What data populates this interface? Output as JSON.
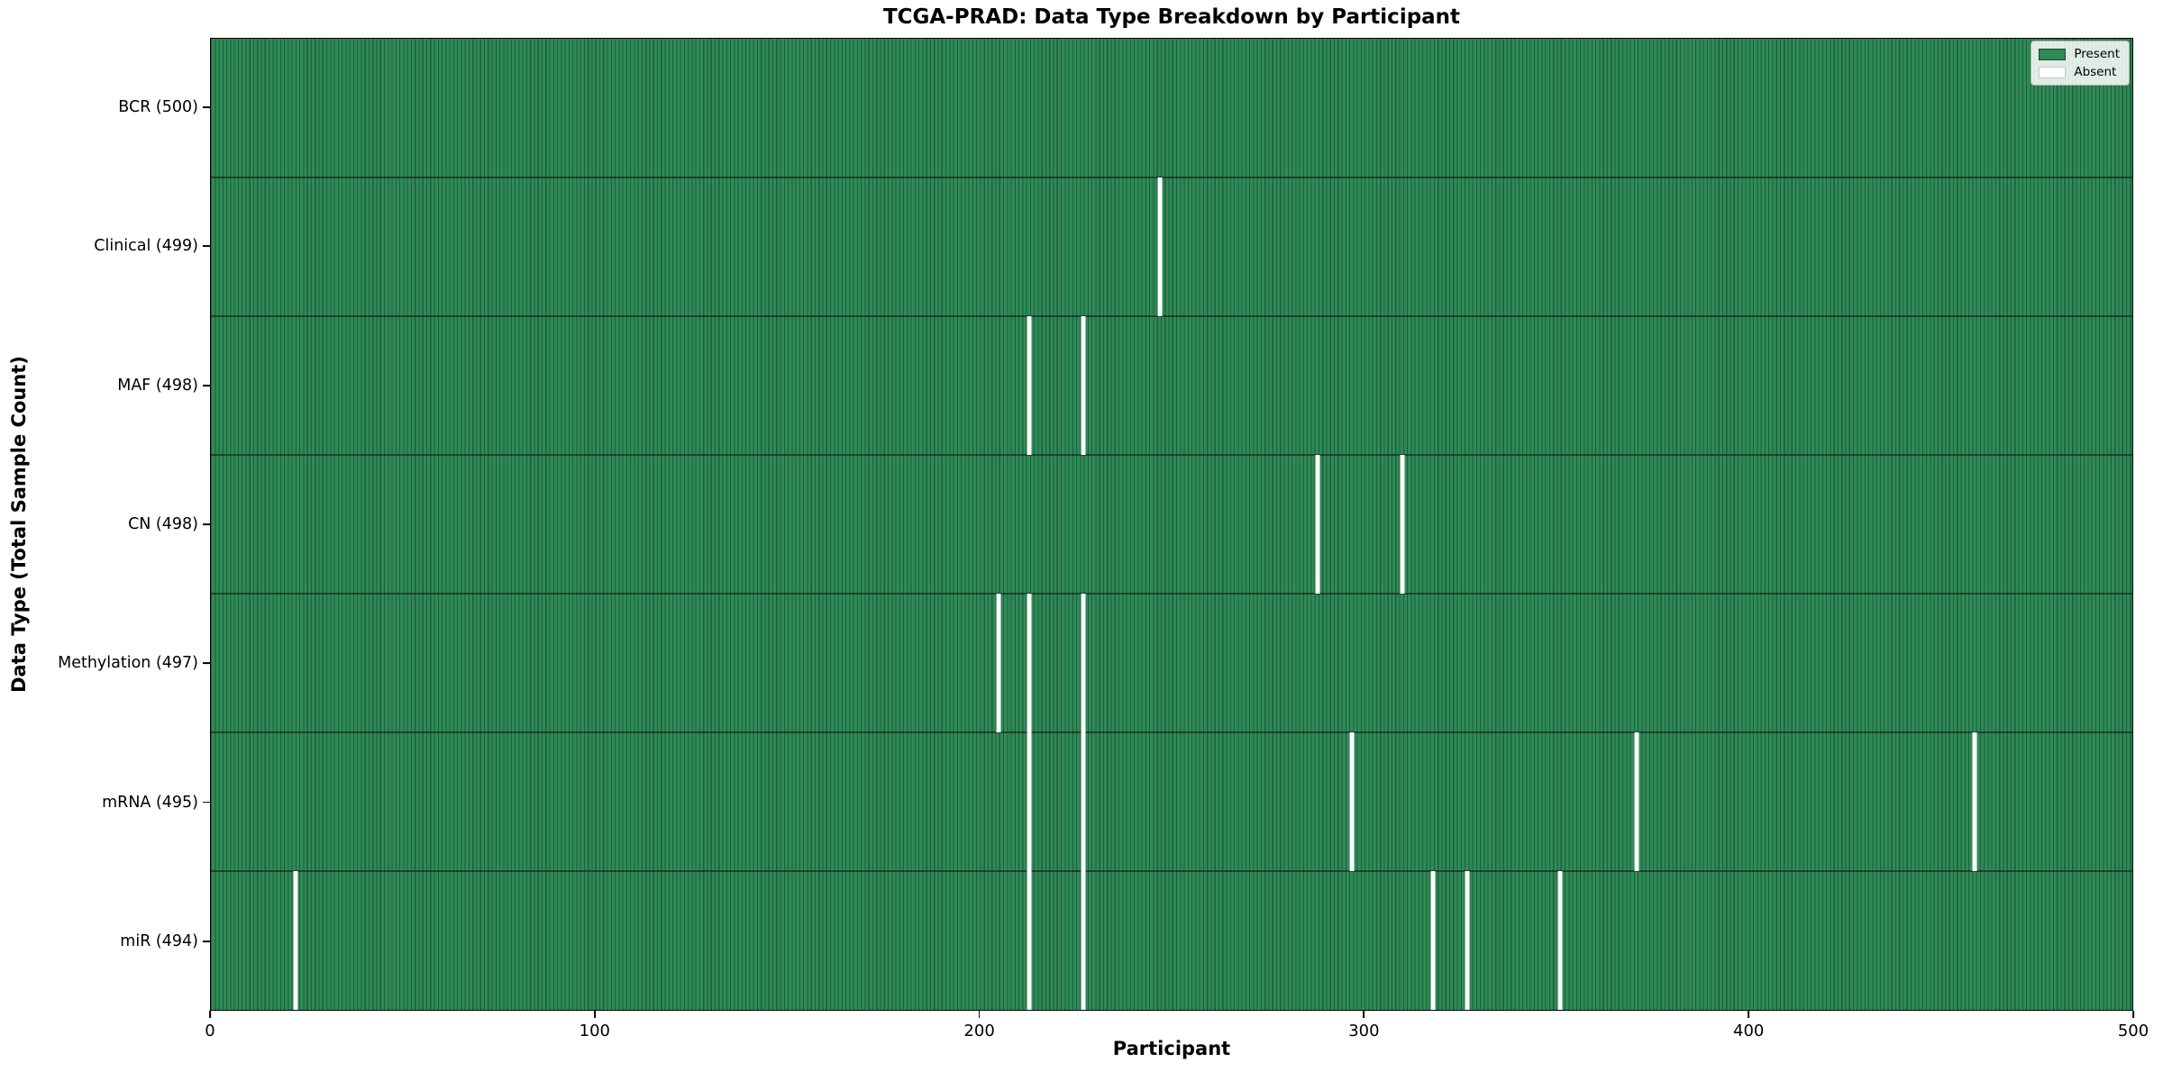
{
  "colors": {
    "present": "#2e8b57",
    "absent": "#ffffff",
    "bar_edge": "#1f5c3b",
    "row_divider": "#1a1a1a"
  },
  "legend": {
    "present_label": "Present",
    "absent_label": "Absent"
  },
  "chart_data": {
    "type": "heatmap",
    "title": "TCGA-PRAD: Data Type Breakdown by Participant",
    "xlabel": "Participant",
    "ylabel": "Data Type (Total Sample Count)",
    "x_range": [
      0,
      500
    ],
    "x_ticks": [
      0,
      100,
      200,
      300,
      400,
      500
    ],
    "n_participants": 500,
    "grid": false,
    "legend_position": "upper right",
    "rows": [
      {
        "label": "BCR (500)",
        "total": 500,
        "absent_participants": []
      },
      {
        "label": "Clinical (499)",
        "total": 499,
        "absent_participants": [
          247
        ]
      },
      {
        "label": "MAF (498)",
        "total": 498,
        "absent_participants": [
          213,
          227
        ]
      },
      {
        "label": "CN (498)",
        "total": 498,
        "absent_participants": [
          288,
          310
        ]
      },
      {
        "label": "Methylation (497)",
        "total": 497,
        "absent_participants": [
          205,
          213,
          227
        ]
      },
      {
        "label": "mRNA (495)",
        "total": 495,
        "absent_participants": [
          213,
          227,
          297,
          371,
          459
        ]
      },
      {
        "label": "miR (494)",
        "total": 494,
        "absent_participants": [
          22,
          213,
          227,
          318,
          327,
          351
        ]
      }
    ]
  }
}
